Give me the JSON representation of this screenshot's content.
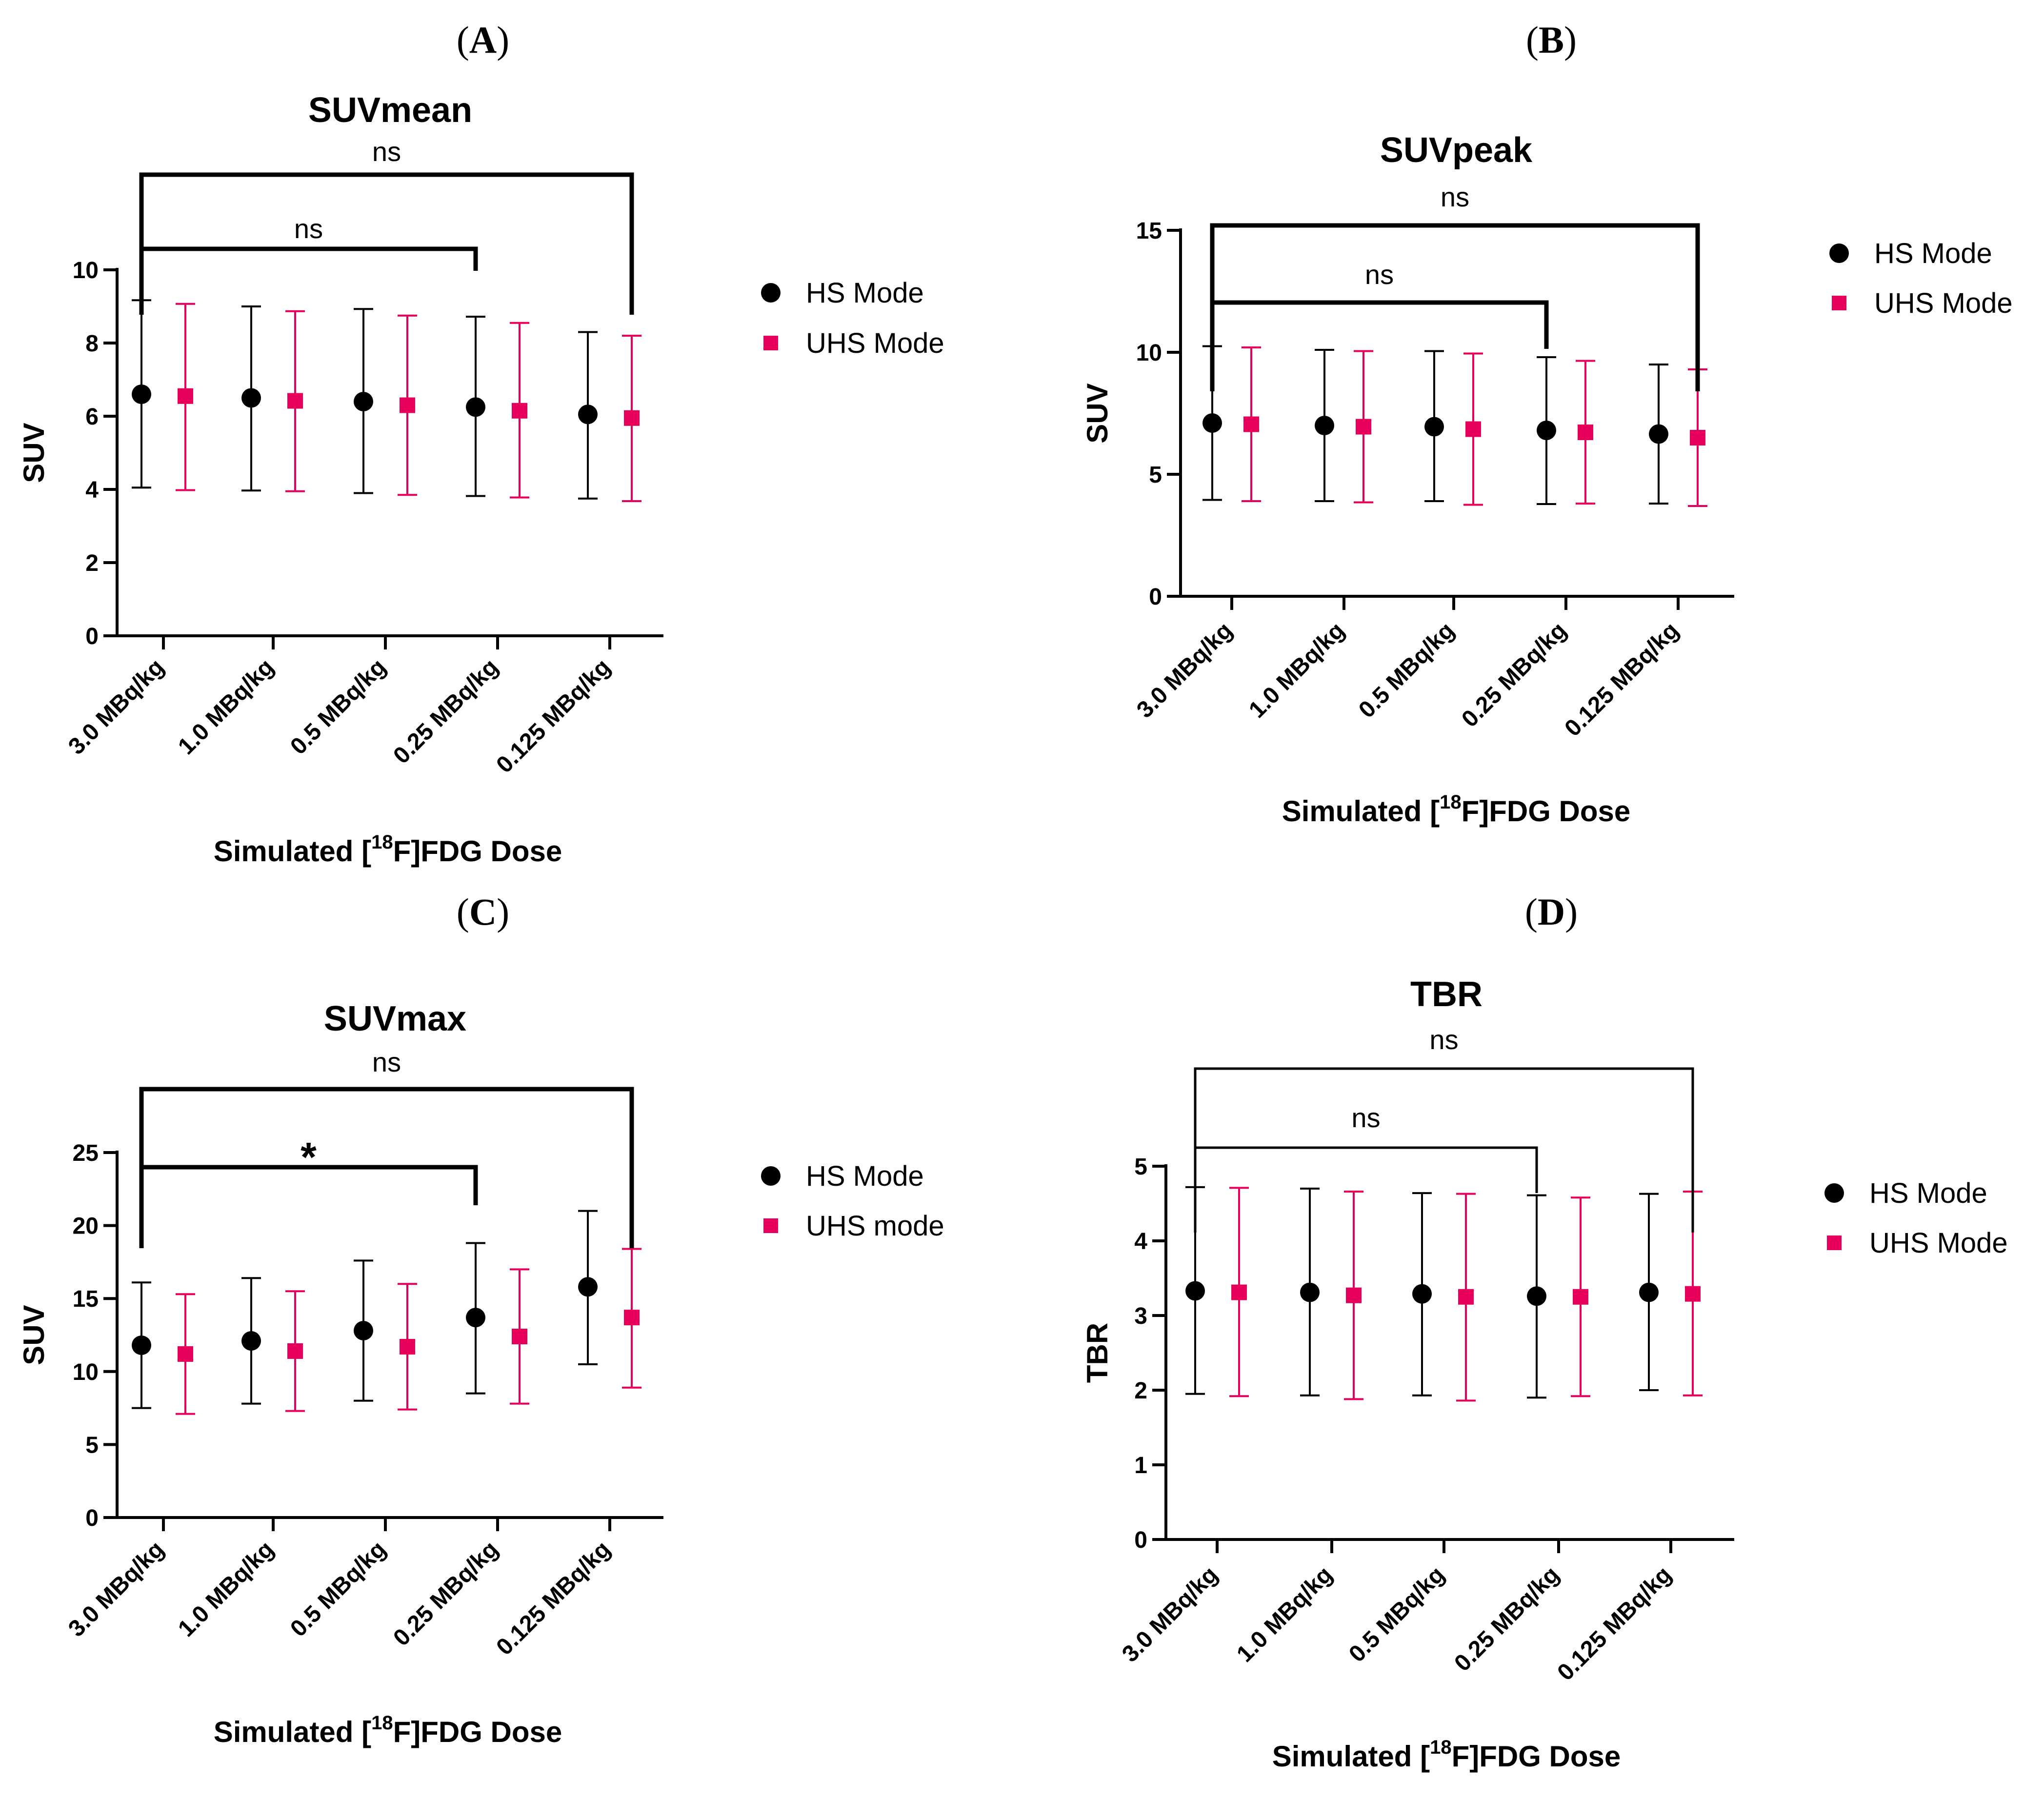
{
  "colors": {
    "hs": "#000000",
    "uhs": "#e6005c"
  },
  "chart_data": [
    {
      "type": "scatter",
      "panel": "(A)",
      "title": "SUVmean",
      "ylabel": "SUV",
      "xlabel_parts": [
        "Simulated [",
        "18",
        "F]FDG Dose"
      ],
      "categories": [
        "3.0 MBq/kg",
        "1.0 MBq/kg",
        "0.5 MBq/kg",
        "0.25 MBq/kg",
        "0.125 MBq/kg"
      ],
      "ylim": [
        0,
        10
      ],
      "yticks": [
        0,
        2,
        4,
        6,
        8,
        10
      ],
      "series": [
        {
          "name": "HS Mode",
          "marker": "circle",
          "values": [
            6.6,
            6.5,
            6.4,
            6.25,
            6.05
          ],
          "lower": [
            4.05,
            3.97,
            3.9,
            3.82,
            3.75
          ],
          "upper": [
            9.17,
            9.0,
            8.93,
            8.72,
            8.3
          ]
        },
        {
          "name": "UHS Mode",
          "marker": "square",
          "values": [
            6.55,
            6.42,
            6.3,
            6.15,
            5.95
          ],
          "lower": [
            3.98,
            3.95,
            3.85,
            3.78,
            3.68
          ],
          "upper": [
            9.07,
            8.87,
            8.75,
            8.55,
            8.2
          ]
        }
      ],
      "sig_brackets": [
        {
          "label": "ns",
          "from": 0,
          "to": 3
        },
        {
          "label": "ns",
          "from": 0,
          "to": 4
        }
      ]
    },
    {
      "type": "scatter",
      "panel": "(B)",
      "title": "SUVpeak",
      "ylabel": "SUV",
      "xlabel_parts": [
        "Simulated [",
        "18",
        "F]FDG Dose"
      ],
      "categories": [
        "3.0 MBq/kg",
        "1.0 MBq/kg",
        "0.5 MBq/kg",
        "0.25 MBq/kg",
        "0.125 MBq/kg"
      ],
      "ylim": [
        0,
        15
      ],
      "yticks": [
        0,
        5,
        10,
        15
      ],
      "series": [
        {
          "name": "HS Mode",
          "marker": "circle",
          "values": [
            7.1,
            7.0,
            6.95,
            6.8,
            6.65
          ],
          "lower": [
            3.95,
            3.9,
            3.9,
            3.78,
            3.8
          ],
          "upper": [
            10.25,
            10.1,
            10.05,
            9.8,
            9.5
          ]
        },
        {
          "name": "UHS Mode",
          "marker": "square",
          "values": [
            7.05,
            6.95,
            6.85,
            6.72,
            6.5
          ],
          "lower": [
            3.9,
            3.85,
            3.75,
            3.8,
            3.7
          ],
          "upper": [
            10.2,
            10.05,
            9.95,
            9.65,
            9.3
          ]
        }
      ],
      "sig_brackets": [
        {
          "label": "ns",
          "from": 0,
          "to": 3
        },
        {
          "label": "ns",
          "from": 0,
          "to": 4
        }
      ]
    },
    {
      "type": "scatter",
      "panel": "(C)",
      "title": "SUVmax",
      "ylabel": "SUV",
      "xlabel_parts": [
        "Simulated [",
        "18",
        "F]FDG Dose"
      ],
      "categories": [
        "3.0 MBq/kg",
        "1.0 MBq/kg",
        "0.5 MBq/kg",
        "0.25 MBq/kg",
        "0.125 MBq/kg"
      ],
      "ylim": [
        0,
        25
      ],
      "yticks": [
        0,
        5,
        10,
        15,
        20,
        25
      ],
      "series": [
        {
          "name": "HS Mode",
          "marker": "circle",
          "values": [
            11.8,
            12.1,
            12.8,
            13.7,
            15.8
          ],
          "lower": [
            7.5,
            7.8,
            8.0,
            8.5,
            10.5
          ],
          "upper": [
            16.1,
            16.4,
            17.6,
            18.8,
            21.0
          ]
        },
        {
          "name": "UHS mode",
          "marker": "square",
          "values": [
            11.2,
            11.4,
            11.7,
            12.4,
            13.7
          ],
          "lower": [
            7.1,
            7.3,
            7.4,
            7.8,
            8.9
          ],
          "upper": [
            15.3,
            15.5,
            16.0,
            17.0,
            18.4
          ]
        }
      ],
      "sig_brackets": [
        {
          "label": "*",
          "from": 0,
          "to": 3
        },
        {
          "label": "ns",
          "from": 0,
          "to": 4
        }
      ]
    },
    {
      "type": "scatter",
      "panel": "(D)",
      "title": "TBR",
      "ylabel": "TBR",
      "xlabel_parts": [
        "Simulated [",
        "18",
        "F]FDG Dose"
      ],
      "categories": [
        "3.0 MBq/kg",
        "1.0 MBq/kg",
        "0.5 MBq/kg",
        "0.25 MBq/kg",
        "0.125 MBq/kg"
      ],
      "ylim": [
        0,
        5
      ],
      "yticks": [
        0,
        1,
        2,
        3,
        4,
        5
      ],
      "series": [
        {
          "name": "HS Mode",
          "marker": "circle",
          "values": [
            3.33,
            3.31,
            3.29,
            3.26,
            3.31
          ],
          "lower": [
            1.95,
            1.93,
            1.93,
            1.9,
            2.0
          ],
          "upper": [
            4.72,
            4.7,
            4.64,
            4.61,
            4.63
          ]
        },
        {
          "name": "UHS Mode",
          "marker": "square",
          "values": [
            3.31,
            3.27,
            3.25,
            3.25,
            3.29
          ],
          "lower": [
            1.92,
            1.88,
            1.86,
            1.92,
            1.93
          ],
          "upper": [
            4.71,
            4.66,
            4.63,
            4.58,
            4.66
          ]
        }
      ],
      "sig_brackets": [
        {
          "label": "ns",
          "from": 0,
          "to": 3
        },
        {
          "label": "ns",
          "from": 0,
          "to": 4
        }
      ]
    }
  ]
}
